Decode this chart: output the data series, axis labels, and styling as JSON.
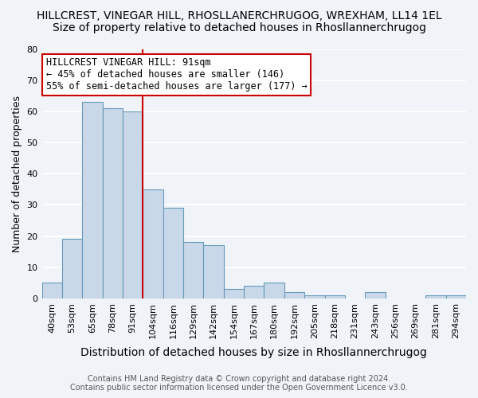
{
  "title": "HILLCREST, VINEGAR HILL, RHOSLLANERCHRUGOG, WREXHAM, LL14 1EL",
  "subtitle": "Size of property relative to detached houses in Rhosllannerchrugog",
  "xlabel": "Distribution of detached houses by size in Rhosllannerchrugog",
  "ylabel": "Number of detached properties",
  "categories": [
    "40sqm",
    "53sqm",
    "65sqm",
    "78sqm",
    "91sqm",
    "104sqm",
    "116sqm",
    "129sqm",
    "142sqm",
    "154sqm",
    "167sqm",
    "180sqm",
    "192sqm",
    "205sqm",
    "218sqm",
    "231sqm",
    "243sqm",
    "256sqm",
    "269sqm",
    "281sqm",
    "294sqm"
  ],
  "values": [
    5,
    19,
    63,
    61,
    60,
    35,
    29,
    18,
    17,
    3,
    4,
    5,
    2,
    1,
    1,
    0,
    2,
    0,
    0,
    1,
    1
  ],
  "bar_color": "#c8d8e8",
  "bar_edge_color": "#6699bb",
  "red_line_x": 4.5,
  "red_line_color": "#cc0000",
  "annotation_line1": "HILLCREST VINEGAR HILL: 91sqm",
  "annotation_line2": "← 45% of detached houses are smaller (146)",
  "annotation_line3": "55% of semi-detached houses are larger (177) →",
  "annotation_box_color": "white",
  "annotation_box_edge_color": "#cc0000",
  "ylim": [
    0,
    80
  ],
  "yticks": [
    0,
    10,
    20,
    30,
    40,
    50,
    60,
    70,
    80
  ],
  "background_color": "#f0f4f8",
  "grid_color": "white",
  "footer_line1": "Contains HM Land Registry data © Crown copyright and database right 2024.",
  "footer_line2": "Contains public sector information licensed under the Open Government Licence v3.0.",
  "title_fontsize": 10,
  "subtitle_fontsize": 10,
  "xlabel_fontsize": 10,
  "ylabel_fontsize": 9,
  "tick_fontsize": 8,
  "annotation_fontsize": 8.5,
  "footer_fontsize": 7
}
